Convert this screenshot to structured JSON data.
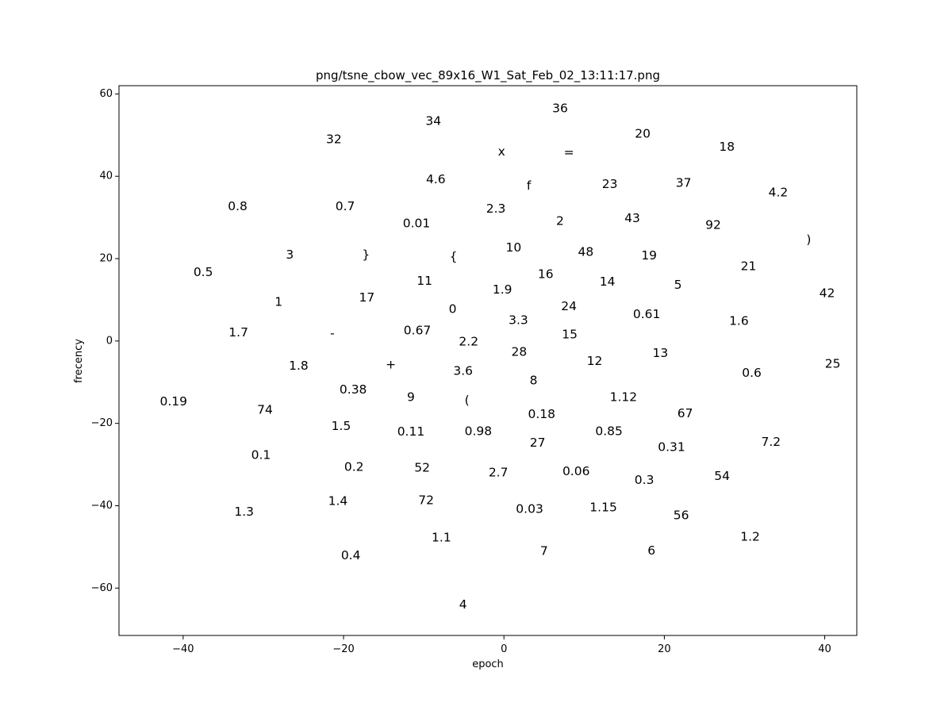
{
  "chart_data": {
    "type": "scatter",
    "title": "png/tsne_cbow_vec_89x16_W1_Sat_Feb_02_13:11:17.png",
    "xlabel": "epoch",
    "ylabel": "frecency",
    "xlim": [
      -48,
      44
    ],
    "ylim": [
      -71.5,
      62
    ],
    "xticks": [
      -40,
      -20,
      0,
      20,
      40
    ],
    "yticks": [
      -60,
      -40,
      -20,
      0,
      20,
      40,
      60
    ],
    "grid": false,
    "legend": "none",
    "points": [
      {
        "label": "36",
        "x": 7,
        "y": 56.5
      },
      {
        "label": "34",
        "x": -8.8,
        "y": 53.4
      },
      {
        "label": "20",
        "x": 17.3,
        "y": 50.3
      },
      {
        "label": "32",
        "x": -21.2,
        "y": 49.0
      },
      {
        "label": "18",
        "x": 27.8,
        "y": 47.2
      },
      {
        "label": "x",
        "x": -0.3,
        "y": 46.0
      },
      {
        "label": "=",
        "x": 8.1,
        "y": 45.8
      },
      {
        "label": "4.6",
        "x": -8.5,
        "y": 39.3
      },
      {
        "label": "37",
        "x": 22.4,
        "y": 38.4
      },
      {
        "label": "23",
        "x": 13.2,
        "y": 38.1
      },
      {
        "label": "f",
        "x": 3.1,
        "y": 37.7
      },
      {
        "label": "4.2",
        "x": 34.2,
        "y": 36.1
      },
      {
        "label": "0.8",
        "x": -33.2,
        "y": 32.7
      },
      {
        "label": "0.7",
        "x": -19.8,
        "y": 32.7
      },
      {
        "label": "2.3",
        "x": -1.0,
        "y": 32.1
      },
      {
        "label": "43",
        "x": 16.0,
        "y": 29.8
      },
      {
        "label": "2",
        "x": 7.0,
        "y": 29.2
      },
      {
        "label": "0.01",
        "x": -10.9,
        "y": 28.6
      },
      {
        "label": "92",
        "x": 26.1,
        "y": 28.2
      },
      {
        "label": ")",
        "x": 38.0,
        "y": 24.6
      },
      {
        "label": "10",
        "x": 1.2,
        "y": 22.7
      },
      {
        "label": "48",
        "x": 10.2,
        "y": 21.6
      },
      {
        "label": "3",
        "x": -26.7,
        "y": 21.0
      },
      {
        "label": "}",
        "x": -17.2,
        "y": 21.0
      },
      {
        "label": "19",
        "x": 18.1,
        "y": 20.8
      },
      {
        "label": "{",
        "x": -6.3,
        "y": 20.5
      },
      {
        "label": "21",
        "x": 30.5,
        "y": 18.2
      },
      {
        "label": "0.5",
        "x": -37.5,
        "y": 16.7
      },
      {
        "label": "16",
        "x": 5.2,
        "y": 16.2
      },
      {
        "label": "11",
        "x": -9.9,
        "y": 14.6
      },
      {
        "label": "14",
        "x": 12.9,
        "y": 14.4
      },
      {
        "label": "5",
        "x": 21.7,
        "y": 13.6
      },
      {
        "label": "1.9",
        "x": -0.2,
        "y": 12.5
      },
      {
        "label": "42",
        "x": 40.3,
        "y": 11.6
      },
      {
        "label": "17",
        "x": -17.1,
        "y": 10.6
      },
      {
        "label": "1",
        "x": -28.1,
        "y": 9.5
      },
      {
        "label": "24",
        "x": 8.1,
        "y": 8.4
      },
      {
        "label": "0",
        "x": -6.4,
        "y": 7.8
      },
      {
        "label": "0.61",
        "x": 17.8,
        "y": 6.5
      },
      {
        "label": "3.3",
        "x": 1.8,
        "y": 5.1
      },
      {
        "label": "1.6",
        "x": 29.3,
        "y": 4.9
      },
      {
        "label": "1.7",
        "x": -33.1,
        "y": 2.1
      },
      {
        "label": "-",
        "x": -21.4,
        "y": 1.9
      },
      {
        "label": "0.67",
        "x": -10.8,
        "y": 2.6
      },
      {
        "label": "15",
        "x": 8.2,
        "y": 1.6
      },
      {
        "label": "2.2",
        "x": -4.4,
        "y": -0.1
      },
      {
        "label": "28",
        "x": 1.9,
        "y": -2.6
      },
      {
        "label": "13",
        "x": 19.5,
        "y": -2.9
      },
      {
        "label": "12",
        "x": 11.3,
        "y": -4.8
      },
      {
        "label": "+",
        "x": -14.1,
        "y": -5.7
      },
      {
        "label": "25",
        "x": 41.0,
        "y": -5.5
      },
      {
        "label": "1.8",
        "x": -25.6,
        "y": -6.0
      },
      {
        "label": "3.6",
        "x": -5.1,
        "y": -7.3
      },
      {
        "label": "0.6",
        "x": 30.9,
        "y": -7.7
      },
      {
        "label": "8",
        "x": 3.7,
        "y": -9.6
      },
      {
        "label": "0.38",
        "x": -18.8,
        "y": -11.8
      },
      {
        "label": "1.12",
        "x": 14.9,
        "y": -13.6
      },
      {
        "label": "9",
        "x": -11.6,
        "y": -13.6
      },
      {
        "label": "(",
        "x": -4.6,
        "y": -14.4
      },
      {
        "label": "0.19",
        "x": -41.2,
        "y": -14.7
      },
      {
        "label": "74",
        "x": -29.8,
        "y": -16.7
      },
      {
        "label": "0.18",
        "x": 4.7,
        "y": -17.8
      },
      {
        "label": "67",
        "x": 22.6,
        "y": -17.6
      },
      {
        "label": "1.5",
        "x": -20.3,
        "y": -20.6
      },
      {
        "label": "0.85",
        "x": 13.1,
        "y": -21.9
      },
      {
        "label": "0.11",
        "x": -11.6,
        "y": -22.0
      },
      {
        "label": "0.98",
        "x": -3.2,
        "y": -21.9
      },
      {
        "label": "27",
        "x": 4.2,
        "y": -24.7
      },
      {
        "label": "7.2",
        "x": 33.3,
        "y": -24.5
      },
      {
        "label": "0.31",
        "x": 20.9,
        "y": -25.7
      },
      {
        "label": "0.1",
        "x": -30.3,
        "y": -27.7
      },
      {
        "label": "0.2",
        "x": -18.7,
        "y": -30.6
      },
      {
        "label": "52",
        "x": -10.2,
        "y": -30.8
      },
      {
        "label": "0.06",
        "x": 9.0,
        "y": -31.6
      },
      {
        "label": "2.7",
        "x": -0.7,
        "y": -31.9
      },
      {
        "label": "54",
        "x": 27.2,
        "y": -32.8
      },
      {
        "label": "0.3",
        "x": 17.5,
        "y": -33.7
      },
      {
        "label": "1.4",
        "x": -20.7,
        "y": -38.8
      },
      {
        "label": "72",
        "x": -9.7,
        "y": -38.7
      },
      {
        "label": "1.15",
        "x": 12.4,
        "y": -40.4
      },
      {
        "label": "0.03",
        "x": 3.2,
        "y": -40.8
      },
      {
        "label": "1.3",
        "x": -32.4,
        "y": -41.4
      },
      {
        "label": "56",
        "x": 22.1,
        "y": -42.3
      },
      {
        "label": "1.1",
        "x": -7.8,
        "y": -47.7
      },
      {
        "label": "1.2",
        "x": 30.7,
        "y": -47.5
      },
      {
        "label": "7",
        "x": 5.0,
        "y": -51.0
      },
      {
        "label": "6",
        "x": 18.4,
        "y": -50.9
      },
      {
        "label": "0.4",
        "x": -19.1,
        "y": -52.0
      },
      {
        "label": "4",
        "x": -5.1,
        "y": -64.0
      }
    ]
  }
}
